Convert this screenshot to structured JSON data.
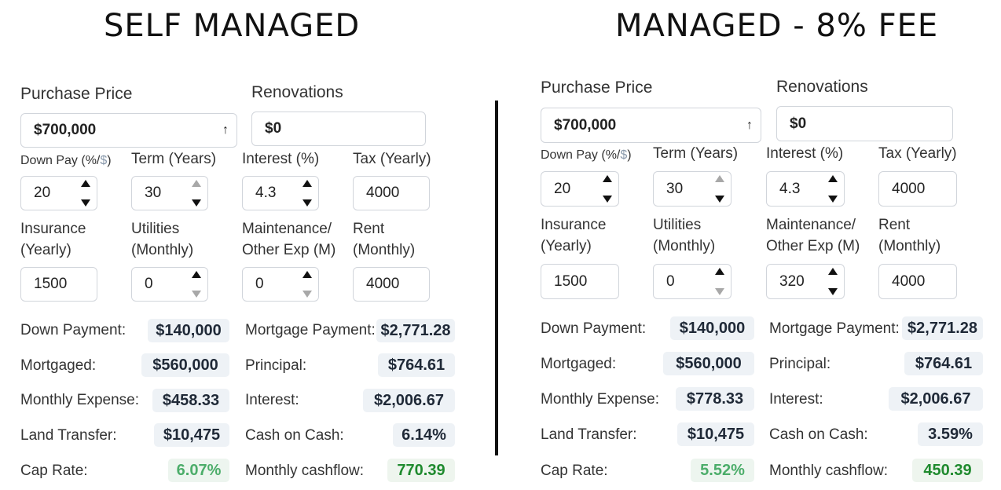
{
  "headings": {
    "left": "SELF MANAGED",
    "right": "MANAGED - 8% FEE"
  },
  "labels": {
    "purchase_price": "Purchase Price",
    "renovations": "Renovations",
    "down_pay_prefix": "Down Pay (%/",
    "down_pay_dollar": "$",
    "down_pay_suffix": ")",
    "term": "Term (Years)",
    "interest_pct": "Interest (%)",
    "tax": "Tax (Yearly)",
    "insurance_1": "Insurance",
    "insurance_2": "(Yearly)",
    "utilities_1": "Utilities",
    "utilities_2": "(Monthly)",
    "maintenance_1": "Maintenance/",
    "maintenance_2": "Other Exp (M)",
    "rent_1": "Rent",
    "rent_2": "(Monthly)",
    "down_payment": "Down Payment:",
    "mortgaged": "Mortgaged:",
    "monthly_expense": "Monthly Expense:",
    "land_transfer": "Land Transfer:",
    "cap_rate": "Cap Rate:",
    "mortgage_payment": "Mortgage Payment:",
    "principal": "Principal:",
    "interest": "Interest:",
    "cash_on_cash": "Cash on Cash:",
    "monthly_cashflow": "Monthly cashflow:"
  },
  "left": {
    "inputs": {
      "purchase_price": "$700,000",
      "renovations": "$0",
      "down_pay": "20",
      "term": "30",
      "interest": "4.3",
      "tax": "4000",
      "insurance": "1500",
      "utilities": "0",
      "maintenance": "0",
      "rent": "4000"
    },
    "results": {
      "down_payment": "$140,000",
      "mortgaged": "$560,000",
      "monthly_expense": "$458.33",
      "land_transfer": "$10,475",
      "cap_rate": "6.07%",
      "mortgage_payment": "$2,771.28",
      "principal": "$764.61",
      "interest": "$2,006.67",
      "cash_on_cash": "6.14%",
      "monthly_cashflow": "770.39"
    }
  },
  "right": {
    "inputs": {
      "purchase_price": "$700,000",
      "renovations": "$0",
      "down_pay": "20",
      "term": "30",
      "interest": "4.3",
      "tax": "4000",
      "insurance": "1500",
      "utilities": "0",
      "maintenance": "320",
      "rent": "4000"
    },
    "results": {
      "down_payment": "$140,000",
      "mortgaged": "$560,000",
      "monthly_expense": "$778.33",
      "land_transfer": "$10,475",
      "cap_rate": "5.52%",
      "mortgage_payment": "$2,771.28",
      "principal": "$764.61",
      "interest": "$2,006.67",
      "cash_on_cash": "3.59%",
      "monthly_cashflow": "450.39"
    }
  },
  "colors": {
    "cashflow_green": "#1f8a2e",
    "cap_rate_green": "#4cad6a",
    "result_bg": "#eef2f6"
  }
}
